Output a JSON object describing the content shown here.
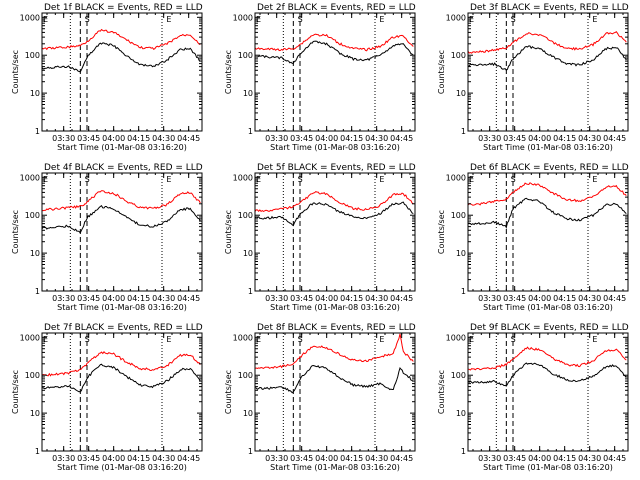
{
  "x_axis_label": "Start Time (01-Mar-08 03:16:20)",
  "y_axis_label": "Counts/sec",
  "x_tick_labels": [
    "03:30",
    "03:45",
    "04:00",
    "04:15",
    "04:30",
    "04:45"
  ],
  "y_tick_labels": [
    "1",
    "10",
    "100",
    "1000"
  ],
  "colors": {
    "events": "#000000",
    "lld": "#ff0000",
    "axes": "#000000",
    "background": "#ffffff"
  },
  "chart_data": [
    {
      "type": "line",
      "title": "Det 1f BLACK = Events, RED = LLD",
      "xlabel": "Start Time (01-Mar-08 03:16:20)",
      "ylabel": "Counts/sec",
      "x_range": [
        "03:17",
        "04:53"
      ],
      "ylim": [
        1,
        1300
      ],
      "y_scale": "log",
      "grid": false,
      "markers": {
        "dotted": [
          "03:34",
          "04:29"
        ],
        "dashed": [
          "03:40",
          "03:44"
        ],
        "letters": [
          {
            "text": "E",
            "at": "03:17"
          },
          {
            "text": "S",
            "at": "03:42"
          },
          {
            "text": "E",
            "at": "04:31"
          }
        ]
      },
      "series": [
        {
          "name": "Events",
          "color": "#000000",
          "x": [
            "03:17",
            "03:25",
            "03:33",
            "03:40",
            "03:44",
            "03:52",
            "04:00",
            "04:08",
            "04:16",
            "04:24",
            "04:32",
            "04:40",
            "04:46",
            "04:52"
          ],
          "y": [
            45,
            48,
            50,
            35,
            90,
            210,
            180,
            95,
            55,
            50,
            75,
            140,
            150,
            70
          ]
        },
        {
          "name": "LLD",
          "color": "#ff0000",
          "x": [
            "03:17",
            "03:25",
            "03:33",
            "03:40",
            "03:44",
            "03:52",
            "04:00",
            "04:08",
            "04:16",
            "04:24",
            "04:32",
            "04:40",
            "04:46",
            "04:52"
          ],
          "y": [
            150,
            155,
            165,
            180,
            230,
            450,
            400,
            250,
            160,
            150,
            200,
            330,
            350,
            190
          ]
        }
      ]
    },
    {
      "type": "line",
      "title": "Det 2f BLACK = Events, RED = LLD",
      "xlabel": "Start Time (01-Mar-08 03:16:20)",
      "ylabel": "Counts/sec",
      "x_range": [
        "03:17",
        "04:53"
      ],
      "ylim": [
        1,
        1300
      ],
      "y_scale": "log",
      "grid": false,
      "markers": {
        "dotted": [
          "03:34",
          "04:29"
        ],
        "dashed": [
          "03:40",
          "03:44"
        ],
        "letters": [
          {
            "text": "E",
            "at": "03:17"
          },
          {
            "text": "S",
            "at": "03:42"
          },
          {
            "text": "E",
            "at": "04:31"
          }
        ]
      },
      "series": [
        {
          "name": "Events",
          "color": "#000000",
          "x": [
            "03:17",
            "03:25",
            "03:33",
            "03:40",
            "03:44",
            "03:52",
            "04:00",
            "04:08",
            "04:16",
            "04:24",
            "04:32",
            "04:40",
            "04:46",
            "04:52"
          ],
          "y": [
            95,
            90,
            85,
            60,
            110,
            230,
            200,
            110,
            80,
            75,
            100,
            180,
            190,
            100
          ]
        },
        {
          "name": "LLD",
          "color": "#ff0000",
          "x": [
            "03:17",
            "03:25",
            "03:33",
            "03:40",
            "03:44",
            "03:52",
            "04:00",
            "04:08",
            "04:16",
            "04:24",
            "04:32",
            "04:40",
            "04:46",
            "04:52"
          ],
          "y": [
            150,
            145,
            140,
            150,
            190,
            350,
            330,
            200,
            150,
            140,
            170,
            300,
            320,
            170
          ]
        }
      ]
    },
    {
      "type": "line",
      "title": "Det 3f BLACK = Events, RED = LLD",
      "xlabel": "Start Time (01-Mar-08 03:16:20)",
      "ylabel": "Counts/sec",
      "x_range": [
        "03:17",
        "04:53"
      ],
      "ylim": [
        1,
        1300
      ],
      "y_scale": "log",
      "grid": false,
      "markers": {
        "dotted": [
          "03:34",
          "04:29"
        ],
        "dashed": [
          "03:40",
          "03:44"
        ],
        "letters": [
          {
            "text": "E",
            "at": "03:17"
          },
          {
            "text": "S",
            "at": "03:42"
          },
          {
            "text": "E",
            "at": "04:31"
          }
        ]
      },
      "series": [
        {
          "name": "Events",
          "color": "#000000",
          "x": [
            "03:17",
            "03:25",
            "03:33",
            "03:40",
            "03:44",
            "03:52",
            "04:00",
            "04:08",
            "04:16",
            "04:24",
            "04:32",
            "04:40",
            "04:46",
            "04:52"
          ],
          "y": [
            55,
            55,
            58,
            40,
            80,
            170,
            150,
            90,
            60,
            55,
            75,
            150,
            160,
            75
          ]
        },
        {
          "name": "LLD",
          "color": "#ff0000",
          "x": [
            "03:17",
            "03:25",
            "03:33",
            "03:40",
            "03:44",
            "03:52",
            "04:00",
            "04:08",
            "04:16",
            "04:24",
            "04:32",
            "04:40",
            "04:46",
            "04:52"
          ],
          "y": [
            120,
            125,
            135,
            160,
            210,
            380,
            350,
            220,
            150,
            145,
            190,
            380,
            400,
            220
          ]
        }
      ]
    },
    {
      "type": "line",
      "title": "Det 4f BLACK = Events, RED = LLD",
      "xlabel": "Start Time (01-Mar-08 03:16:20)",
      "ylabel": "Counts/sec",
      "x_range": [
        "03:17",
        "04:53"
      ],
      "ylim": [
        1,
        1300
      ],
      "y_scale": "log",
      "grid": false,
      "markers": {
        "dotted": [
          "03:34",
          "04:29"
        ],
        "dashed": [
          "03:40",
          "03:44"
        ],
        "letters": [
          {
            "text": "E",
            "at": "03:17"
          },
          {
            "text": "S",
            "at": "03:42"
          },
          {
            "text": "E",
            "at": "04:31"
          }
        ]
      },
      "series": [
        {
          "name": "Events",
          "color": "#000000",
          "x": [
            "03:17",
            "03:25",
            "03:33",
            "03:40",
            "03:44",
            "03:52",
            "04:00",
            "04:08",
            "04:16",
            "04:24",
            "04:32",
            "04:40",
            "04:46",
            "04:52"
          ],
          "y": [
            45,
            48,
            52,
            35,
            85,
            170,
            150,
            85,
            55,
            50,
            70,
            140,
            150,
            70
          ]
        },
        {
          "name": "LLD",
          "color": "#ff0000",
          "x": [
            "03:17",
            "03:25",
            "03:33",
            "03:40",
            "03:44",
            "03:52",
            "04:00",
            "04:08",
            "04:16",
            "04:24",
            "04:32",
            "04:40",
            "04:46",
            "04:52"
          ],
          "y": [
            140,
            145,
            160,
            170,
            220,
            430,
            380,
            230,
            160,
            150,
            190,
            380,
            400,
            210
          ]
        }
      ]
    },
    {
      "type": "line",
      "title": "Det 5f BLACK = Events, RED = LLD",
      "xlabel": "Start Time (01-Mar-08 03:16:20)",
      "ylabel": "Counts/sec",
      "x_range": [
        "03:17",
        "04:53"
      ],
      "ylim": [
        1,
        1300
      ],
      "y_scale": "log",
      "grid": false,
      "markers": {
        "dotted": [
          "03:34",
          "04:29"
        ],
        "dashed": [
          "03:40",
          "03:44"
        ],
        "letters": [
          {
            "text": "E",
            "at": "03:17"
          },
          {
            "text": "S",
            "at": "03:42"
          },
          {
            "text": "E",
            "at": "04:31"
          }
        ]
      },
      "series": [
        {
          "name": "Events",
          "color": "#000000",
          "x": [
            "03:17",
            "03:25",
            "03:33",
            "03:40",
            "03:44",
            "03:52",
            "04:00",
            "04:08",
            "04:16",
            "04:24",
            "04:32",
            "04:40",
            "04:46",
            "04:52"
          ],
          "y": [
            85,
            85,
            90,
            55,
            110,
            210,
            190,
            120,
            90,
            85,
            110,
            200,
            210,
            110
          ]
        },
        {
          "name": "LLD",
          "color": "#ff0000",
          "x": [
            "03:17",
            "03:25",
            "03:33",
            "03:40",
            "03:44",
            "03:52",
            "04:00",
            "04:08",
            "04:16",
            "04:24",
            "04:32",
            "04:40",
            "04:46",
            "04:52"
          ],
          "y": [
            130,
            130,
            145,
            165,
            210,
            400,
            360,
            220,
            150,
            140,
            180,
            350,
            370,
            200
          ]
        }
      ]
    },
    {
      "type": "line",
      "title": "Det 6f BLACK = Events, RED = LLD",
      "xlabel": "Start Time (01-Mar-08 03:16:20)",
      "ylabel": "Counts/sec",
      "x_range": [
        "03:17",
        "04:53"
      ],
      "ylim": [
        1,
        1300
      ],
      "y_scale": "log",
      "grid": false,
      "markers": {
        "dotted": [
          "03:34",
          "04:29"
        ],
        "dashed": [
          "03:40",
          "03:44"
        ],
        "letters": [
          {
            "text": "E",
            "at": "03:17"
          },
          {
            "text": "S",
            "at": "03:42"
          },
          {
            "text": "E",
            "at": "04:31"
          }
        ]
      },
      "series": [
        {
          "name": "Events",
          "color": "#000000",
          "x": [
            "03:17",
            "03:25",
            "03:33",
            "03:40",
            "03:44",
            "03:52",
            "04:00",
            "04:08",
            "04:16",
            "04:24",
            "04:32",
            "04:40",
            "04:46",
            "04:52"
          ],
          "y": [
            60,
            60,
            65,
            50,
            150,
            280,
            230,
            120,
            80,
            75,
            100,
            190,
            200,
            110
          ]
        },
        {
          "name": "LLD",
          "color": "#ff0000",
          "x": [
            "03:17",
            "03:25",
            "03:33",
            "03:40",
            "03:44",
            "03:52",
            "04:00",
            "04:08",
            "04:16",
            "04:24",
            "04:32",
            "04:40",
            "04:46",
            "04:52"
          ],
          "y": [
            190,
            200,
            230,
            270,
            400,
            700,
            620,
            380,
            260,
            240,
            310,
            560,
            580,
            330
          ]
        }
      ]
    },
    {
      "type": "line",
      "title": "Det 7f BLACK = Events, RED = LLD",
      "xlabel": "Start Time (01-Mar-08 03:16:20)",
      "ylabel": "Counts/sec",
      "x_range": [
        "03:17",
        "04:53"
      ],
      "ylim": [
        1,
        1300
      ],
      "y_scale": "log",
      "grid": false,
      "markers": {
        "dotted": [
          "03:34",
          "04:29"
        ],
        "dashed": [
          "03:40",
          "03:44"
        ],
        "letters": [
          {
            "text": "E",
            "at": "03:17"
          },
          {
            "text": "S",
            "at": "03:42"
          },
          {
            "text": "E",
            "at": "04:31"
          }
        ]
      },
      "series": [
        {
          "name": "Events",
          "color": "#000000",
          "x": [
            "03:17",
            "03:25",
            "03:33",
            "03:40",
            "03:44",
            "03:52",
            "04:00",
            "04:08",
            "04:16",
            "04:24",
            "04:32",
            "04:40",
            "04:46",
            "04:52"
          ],
          "y": [
            45,
            48,
            52,
            35,
            85,
            190,
            160,
            90,
            55,
            50,
            70,
            140,
            150,
            70
          ]
        },
        {
          "name": "LLD",
          "color": "#ff0000",
          "x": [
            "03:17",
            "03:25",
            "03:33",
            "03:40",
            "03:44",
            "03:52",
            "04:00",
            "04:08",
            "04:16",
            "04:24",
            "04:32",
            "04:40",
            "04:46",
            "04:52"
          ],
          "y": [
            100,
            105,
            115,
            140,
            200,
            400,
            360,
            220,
            150,
            140,
            180,
            330,
            350,
            190
          ]
        }
      ]
    },
    {
      "type": "line",
      "title": "Det 8f BLACK = Events, RED = LLD",
      "xlabel": "Start Time (01-Mar-08 03:16:20)",
      "ylabel": "Counts/sec",
      "x_range": [
        "03:17",
        "04:53"
      ],
      "ylim": [
        1,
        1300
      ],
      "y_scale": "log",
      "grid": false,
      "markers": {
        "dotted": [
          "03:34",
          "04:29"
        ],
        "dashed": [
          "03:40",
          "03:44"
        ],
        "letters": [
          {
            "text": "E",
            "at": "03:17"
          },
          {
            "text": "S",
            "at": "03:42"
          },
          {
            "text": "E",
            "at": "04:31"
          }
        ]
      },
      "series": [
        {
          "name": "Events",
          "color": "#000000",
          "x": [
            "03:17",
            "03:25",
            "03:33",
            "03:40",
            "03:44",
            "03:52",
            "04:00",
            "04:08",
            "04:16",
            "04:24",
            "04:32",
            "04:40",
            "04:44",
            "04:46",
            "04:52"
          ],
          "y": [
            45,
            45,
            50,
            35,
            80,
            180,
            150,
            85,
            55,
            50,
            60,
            40,
            150,
            120,
            70
          ]
        },
        {
          "name": "LLD",
          "color": "#ff0000",
          "x": [
            "03:17",
            "03:25",
            "03:33",
            "03:40",
            "03:44",
            "03:52",
            "04:00",
            "04:08",
            "04:16",
            "04:24",
            "04:32",
            "04:40",
            "04:44",
            "04:46",
            "04:52"
          ],
          "y": [
            150,
            155,
            170,
            200,
            300,
            600,
            530,
            350,
            250,
            240,
            300,
            380,
            1200,
            420,
            230
          ]
        }
      ]
    },
    {
      "type": "line",
      "title": "Det 9f BLACK = Events, RED = LLD",
      "xlabel": "Start Time (01-Mar-08 03:16:20)",
      "ylabel": "Counts/sec",
      "x_range": [
        "03:17",
        "04:53"
      ],
      "ylim": [
        1,
        1300
      ],
      "y_scale": "log",
      "grid": false,
      "markers": {
        "dotted": [
          "03:34",
          "04:29"
        ],
        "dashed": [
          "03:40",
          "03:44"
        ],
        "letters": [
          {
            "text": "E",
            "at": "03:17"
          },
          {
            "text": "S",
            "at": "03:42"
          },
          {
            "text": "E",
            "at": "04:31"
          }
        ]
      },
      "series": [
        {
          "name": "Events",
          "color": "#000000",
          "x": [
            "03:17",
            "03:25",
            "03:33",
            "03:40",
            "03:44",
            "03:52",
            "04:00",
            "04:08",
            "04:16",
            "04:24",
            "04:32",
            "04:40",
            "04:46",
            "04:52"
          ],
          "y": [
            65,
            65,
            70,
            50,
            100,
            210,
            190,
            110,
            75,
            70,
            95,
            170,
            180,
            90
          ]
        },
        {
          "name": "LLD",
          "color": "#ff0000",
          "x": [
            "03:17",
            "03:25",
            "03:33",
            "03:40",
            "03:44",
            "03:52",
            "04:00",
            "04:08",
            "04:16",
            "04:24",
            "04:32",
            "04:40",
            "04:46",
            "04:52"
          ],
          "y": [
            140,
            145,
            160,
            190,
            260,
            520,
            470,
            280,
            190,
            180,
            240,
            450,
            470,
            250
          ]
        }
      ]
    }
  ]
}
